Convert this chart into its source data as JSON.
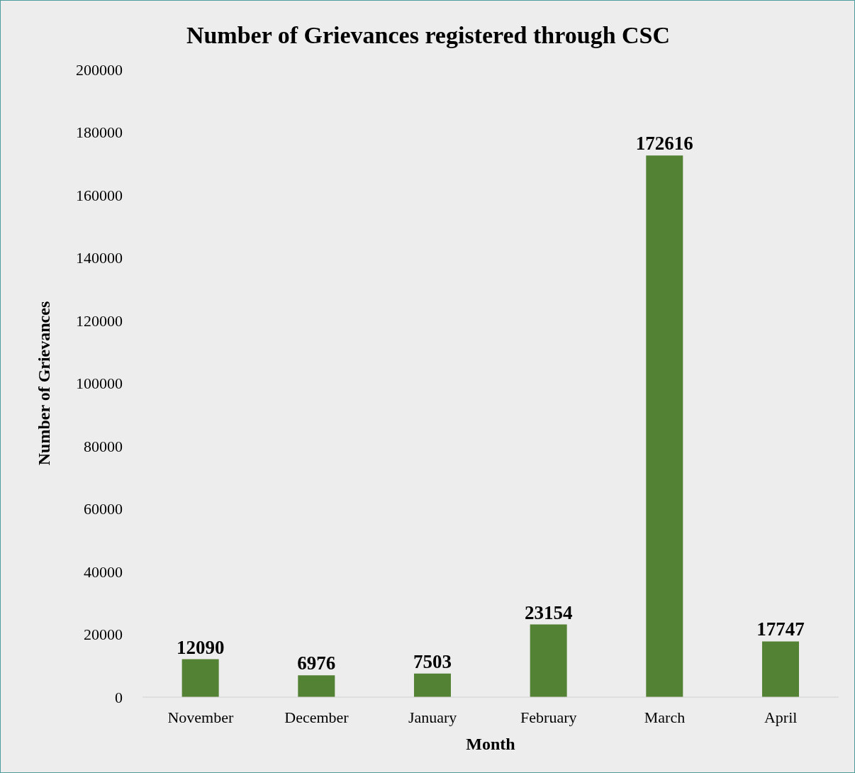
{
  "chart_data": {
    "type": "bar",
    "title": "Number of Grievances registered through CSC",
    "xlabel": "Month",
    "ylabel": "Number of Grievances",
    "categories": [
      "November",
      "December",
      "January",
      "February",
      "March",
      "April"
    ],
    "values": [
      12090,
      6976,
      7503,
      23154,
      172616,
      17747
    ],
    "color": "#548235",
    "ylim": [
      0,
      200000
    ],
    "yticks": [
      0,
      20000,
      40000,
      60000,
      80000,
      100000,
      120000,
      140000,
      160000,
      180000,
      200000
    ],
    "data_labels": true
  }
}
